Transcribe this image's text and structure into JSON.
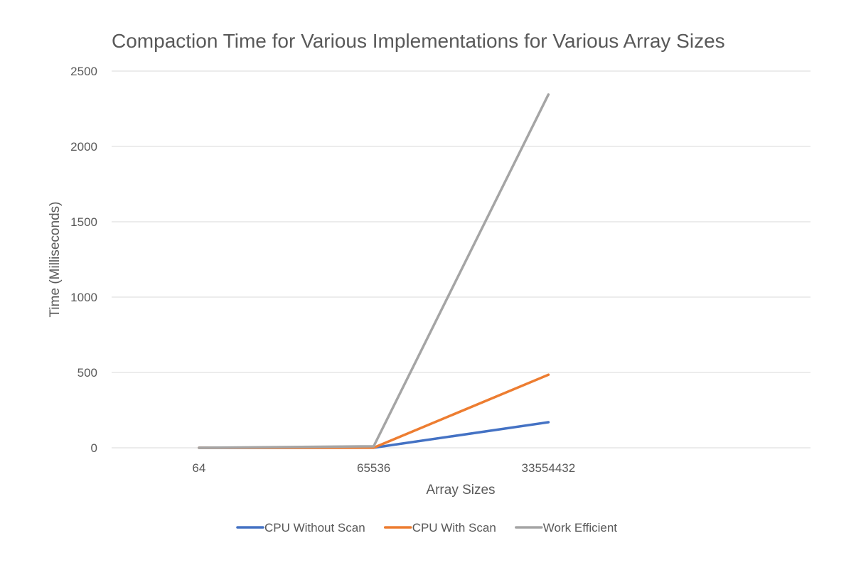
{
  "chart_data": {
    "type": "line",
    "title": "Compaction Time for Various Implementations for Various Array Sizes",
    "xlabel": "Array Sizes",
    "ylabel": "Time (Milliseconds)",
    "categories": [
      "64",
      "65536",
      "33554432"
    ],
    "ylim": [
      0,
      2500
    ],
    "yticks": [
      0,
      500,
      1000,
      1500,
      2000,
      2500
    ],
    "grid": true,
    "legend_position": "bottom",
    "series": [
      {
        "name": "CPU Without Scan",
        "color": "#4472c4",
        "values": [
          0.001,
          0.25,
          170
        ]
      },
      {
        "name": "CPU With Scan",
        "color": "#ed7d31",
        "values": [
          0.002,
          0.5,
          485
        ]
      },
      {
        "name": "Work Efficient",
        "color": "#a5a5a5",
        "values": [
          0.1,
          10,
          2345
        ]
      }
    ]
  }
}
